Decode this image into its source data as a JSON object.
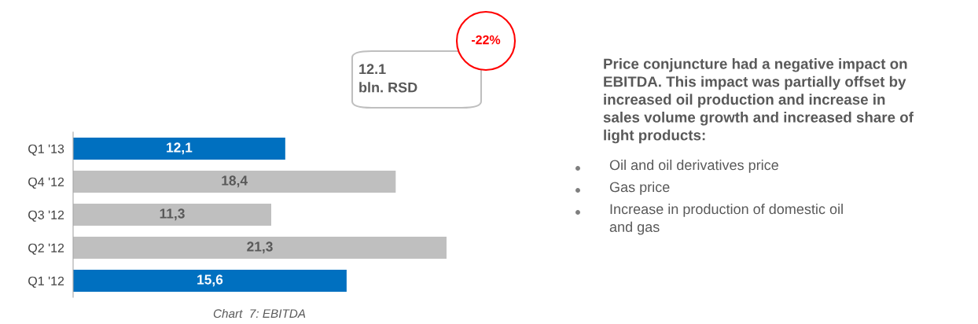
{
  "chart_data": {
    "type": "bar",
    "orientation": "horizontal",
    "categories": [
      "Q1 '13",
      "Q4 '12",
      "Q3 '12",
      "Q2 '12",
      "Q1 '12"
    ],
    "values": [
      12.1,
      18.4,
      11.3,
      21.3,
      15.6
    ],
    "colors": [
      "#0070c0",
      "#bfbfbf",
      "#bfbfbf",
      "#bfbfbf",
      "#0070c0"
    ],
    "value_labels": [
      "12,1",
      "18,4",
      "11,3",
      "21,3",
      "15,6"
    ],
    "annotations": [
      "12.1\nbln. RSD",
      "-22%",
      "Price conjuncture had a negative impact on\nEBITDA. This impact was partially offset by\nincreased oil production and increase in\nsales volume growth and increased share of\nlight products:",
      "Oil and oil derivatives price",
      "Gas price",
      "Increase in production of domestic oil\nand gas",
      "Chart  7: EBITDA"
    ],
    "legend": false,
    "grid": false
  }
}
